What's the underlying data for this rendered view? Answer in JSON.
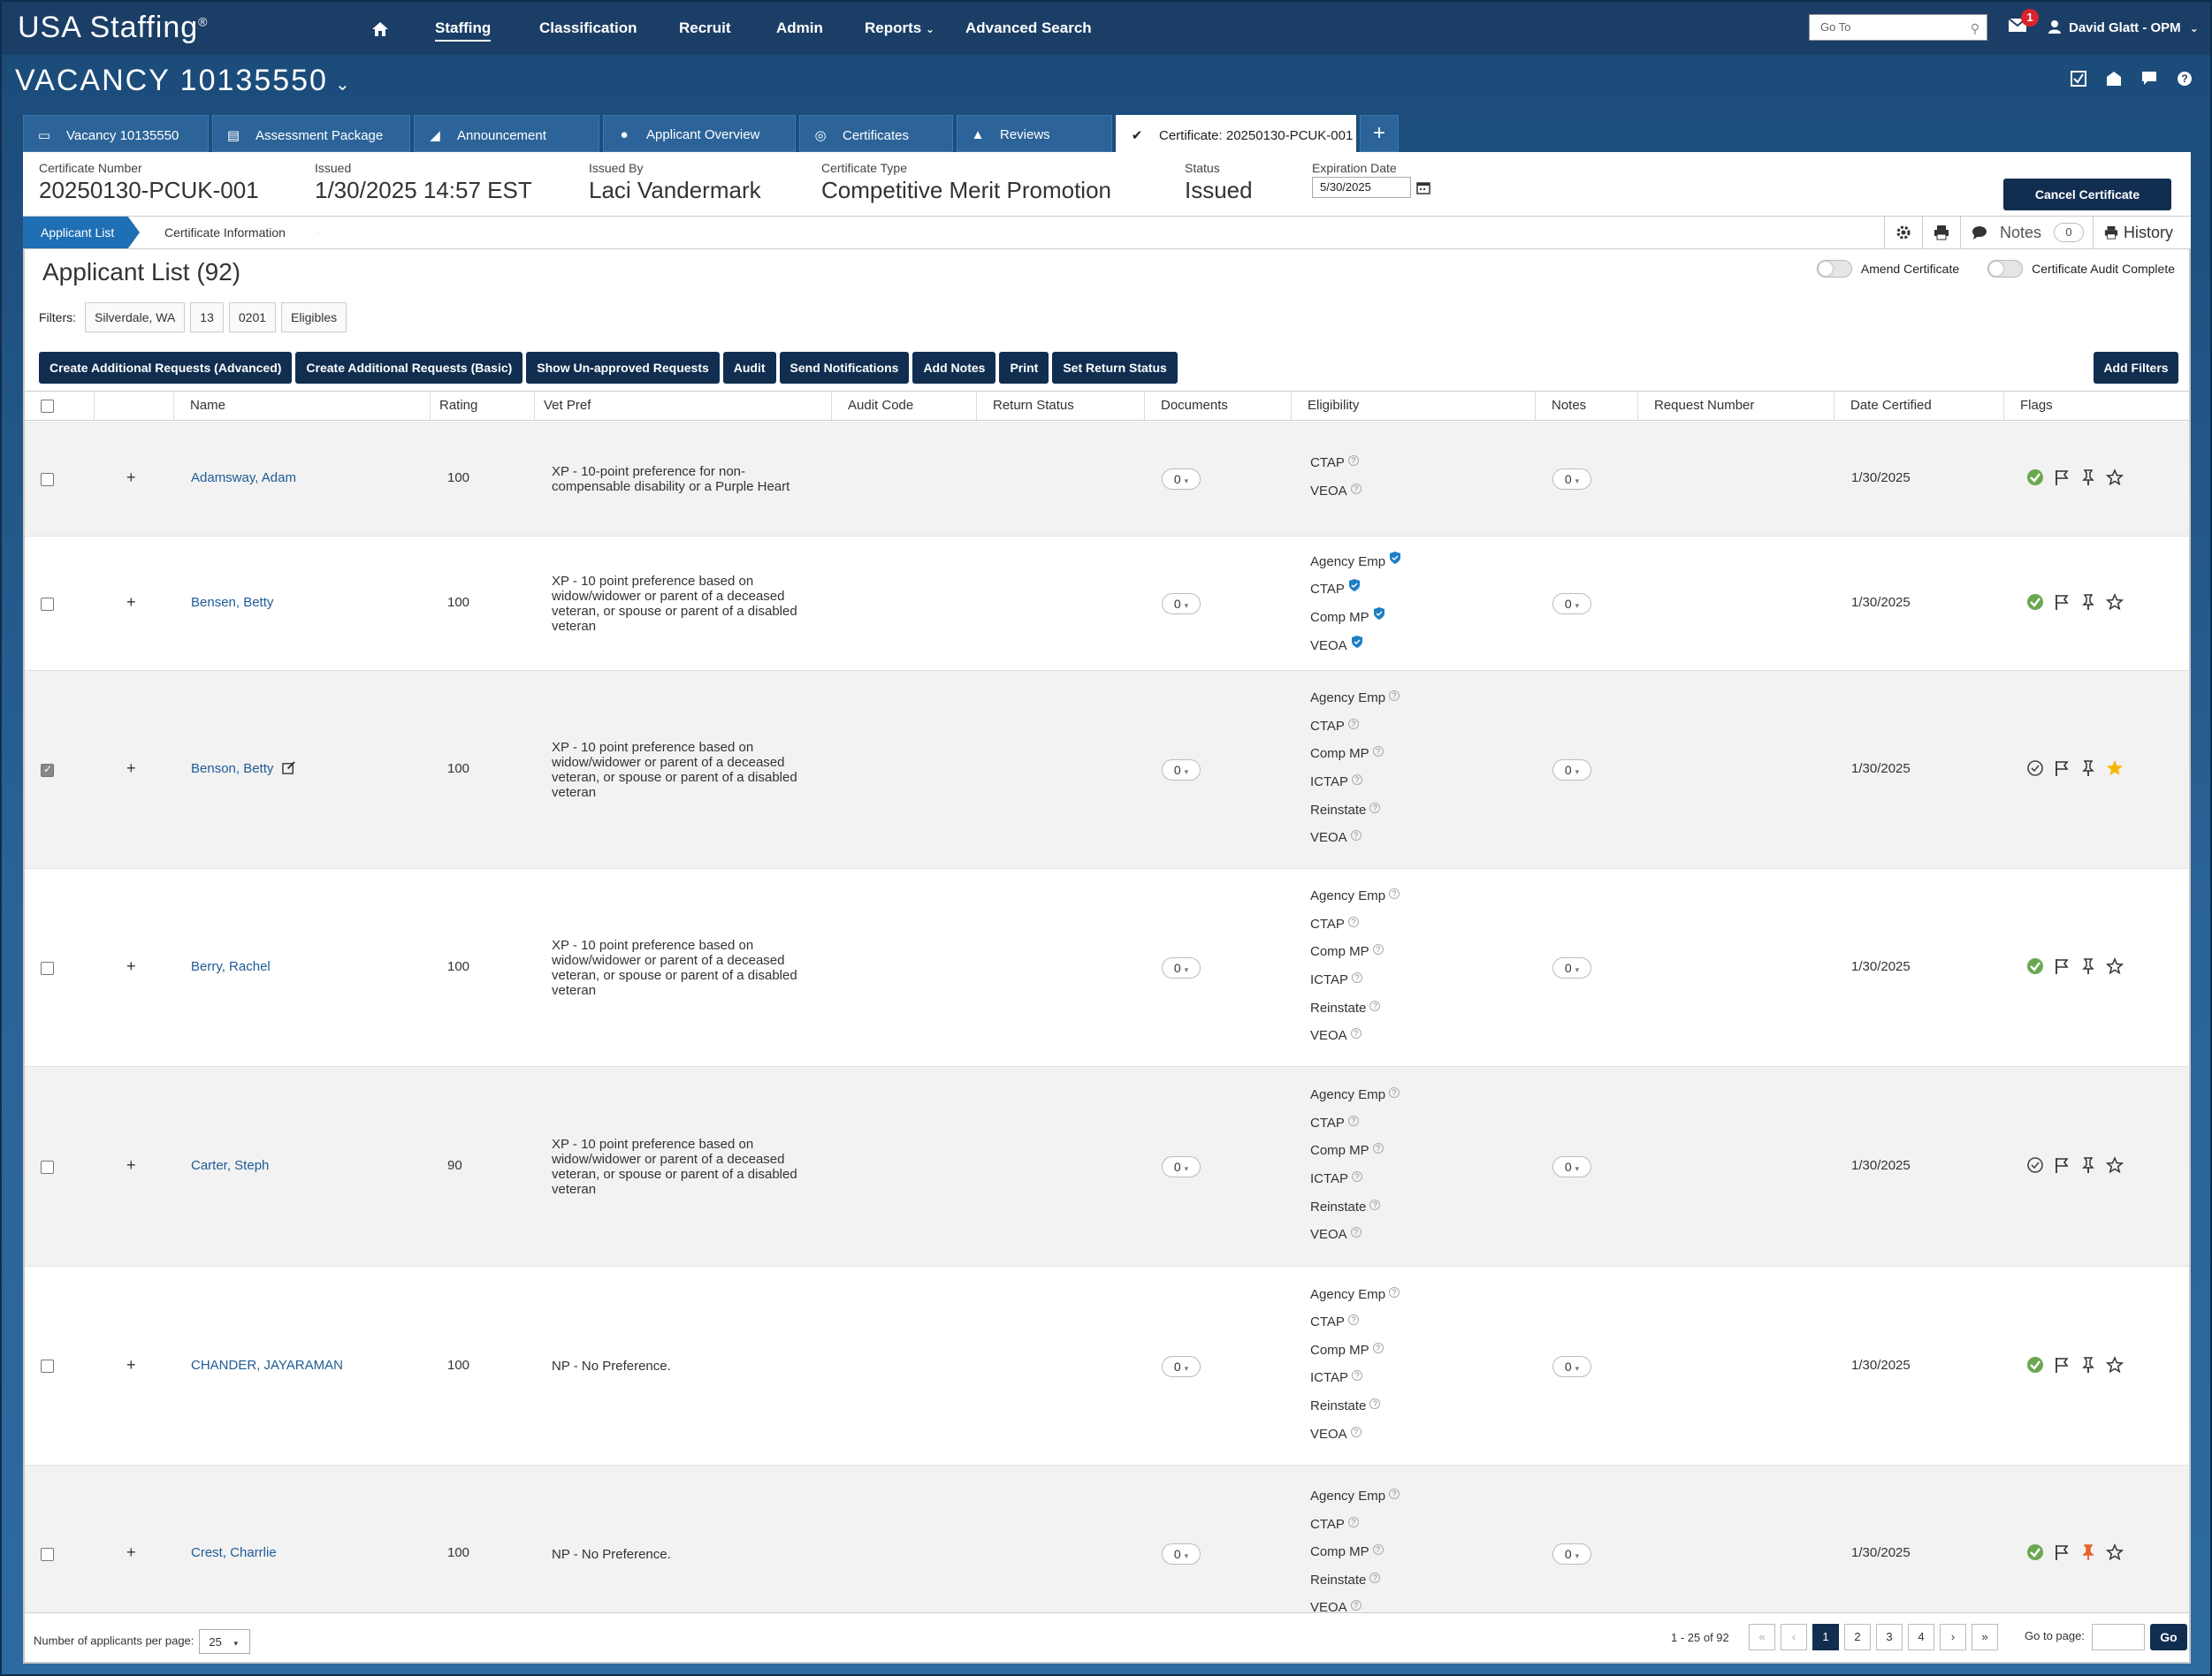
{
  "app": {
    "brand": "USA Staffing",
    "brand_mark": "®",
    "nav": [
      "Staffing",
      "Classification",
      "Recruit",
      "Admin",
      "Reports",
      "Advanced Search"
    ],
    "goto_placeholder": "Go To",
    "mail_badge": "1",
    "user": "David Glatt - OPM"
  },
  "vacancy": {
    "title": "VACANCY 10135550"
  },
  "tabs": [
    "Vacancy 10135550",
    "Assessment Package",
    "Announcement",
    "Applicant Overview",
    "Certificates",
    "Reviews",
    "Certificate: 20250130-PCUK-001"
  ],
  "certificate": {
    "number_label": "Certificate Number",
    "number": "20250130-PCUK-001",
    "issued_label": "Issued",
    "issued": "1/30/2025 14:57 EST",
    "issued_by_label": "Issued By",
    "issued_by": "Laci Vandermark",
    "type_label": "Certificate Type",
    "type": "Competitive Merit Promotion",
    "status_label": "Status",
    "status": "Issued",
    "expiration_label": "Expiration Date",
    "expiration": "5/30/2025",
    "cancel_label": "Cancel Certificate"
  },
  "subnav": {
    "applicant_list": "Applicant List",
    "certificate_information": "Certificate Information",
    "notes_label": "Notes",
    "notes_count": "0",
    "history_label": "History"
  },
  "list": {
    "title": "Applicant List (92)",
    "amend_label": "Amend Certificate",
    "audit_complete_label": "Certificate Audit Complete",
    "filters_label": "Filters:",
    "filters": [
      "Silverdale, WA",
      "13",
      "0201",
      "Eligibles"
    ],
    "actions": [
      "Create Additional Requests (Advanced)",
      "Create Additional Requests (Basic)",
      "Show Un-approved Requests",
      "Audit",
      "Send Notifications",
      "Add Notes",
      "Print",
      "Set Return Status"
    ],
    "add_filters": "Add Filters",
    "columns": [
      "Name",
      "Rating",
      "Vet Pref",
      "Audit Code",
      "Return Status",
      "Documents",
      "Eligibility",
      "Notes",
      "Request Number",
      "Date Certified",
      "Flags"
    ]
  },
  "rows": [
    {
      "name": "Adamsway, Adam",
      "rating": "100",
      "vet": "XP - 10-point preference for non-compensable disability or a Purple Heart",
      "docs": "0",
      "elig": [
        "CTAP",
        "VEOA"
      ],
      "notes": "0",
      "date": "1/30/2025",
      "checked": false,
      "verified": false,
      "green_check": true,
      "star": false,
      "pin_orange": false
    },
    {
      "name": "Bensen, Betty",
      "rating": "100",
      "vet": "XP - 10 point preference based on widow/widower or parent of a deceased veteran, or spouse or parent of a disabled veteran",
      "docs": "0",
      "elig": [
        "Agency Emp",
        "CTAP",
        "Comp MP",
        "VEOA"
      ],
      "notes": "0",
      "date": "1/30/2025",
      "checked": false,
      "verified": true,
      "green_check": true,
      "star": false,
      "pin_orange": false
    },
    {
      "name": "Benson, Betty",
      "rating": "100",
      "vet": "XP - 10 point preference based on widow/widower or parent of a deceased veteran, or spouse or parent of a disabled veteran",
      "docs": "0",
      "elig": [
        "Agency Emp",
        "CTAP",
        "Comp MP",
        "ICTAP",
        "Reinstate",
        "VEOA"
      ],
      "notes": "0",
      "date": "1/30/2025",
      "checked": true,
      "verified": false,
      "green_check": false,
      "star": true,
      "pin_orange": false
    },
    {
      "name": "Berry, Rachel",
      "rating": "100",
      "vet": "XP - 10 point preference based on widow/widower or parent of a deceased veteran, or spouse or parent of a disabled veteran",
      "docs": "0",
      "elig": [
        "Agency Emp",
        "CTAP",
        "Comp MP",
        "ICTAP",
        "Reinstate",
        "VEOA"
      ],
      "notes": "0",
      "date": "1/30/2025",
      "checked": false,
      "verified": false,
      "green_check": true,
      "star": false,
      "pin_orange": false
    },
    {
      "name": "Carter, Steph",
      "rating": "90",
      "vet": "XP - 10 point preference based on widow/widower or parent of a deceased veteran, or spouse or parent of a disabled veteran",
      "docs": "0",
      "elig": [
        "Agency Emp",
        "CTAP",
        "Comp MP",
        "ICTAP",
        "Reinstate",
        "VEOA"
      ],
      "notes": "0",
      "date": "1/30/2025",
      "checked": false,
      "verified": false,
      "green_check": false,
      "star": false,
      "pin_orange": false
    },
    {
      "name": "CHANDER, JAYARAMAN",
      "rating": "100",
      "vet": "NP - No Preference.",
      "docs": "0",
      "elig": [
        "Agency Emp",
        "CTAP",
        "Comp MP",
        "ICTAP",
        "Reinstate",
        "VEOA"
      ],
      "notes": "0",
      "date": "1/30/2025",
      "checked": false,
      "verified": false,
      "green_check": true,
      "star": false,
      "pin_orange": false
    },
    {
      "name": "Crest, Charrlie",
      "rating": "100",
      "vet": "NP - No Preference.",
      "docs": "0",
      "elig": [
        "Agency Emp",
        "CTAP",
        "Comp MP",
        "Reinstate",
        "VEOA"
      ],
      "notes": "0",
      "date": "1/30/2025",
      "checked": false,
      "verified": false,
      "green_check": true,
      "star": false,
      "pin_orange": true
    }
  ],
  "footer": {
    "per_page_label": "Number of applicants per page:",
    "per_page": "25",
    "range": "1 - 25 of 92",
    "pages": [
      "1",
      "2",
      "3",
      "4"
    ],
    "goto_label": "Go to page:",
    "go": "Go"
  }
}
